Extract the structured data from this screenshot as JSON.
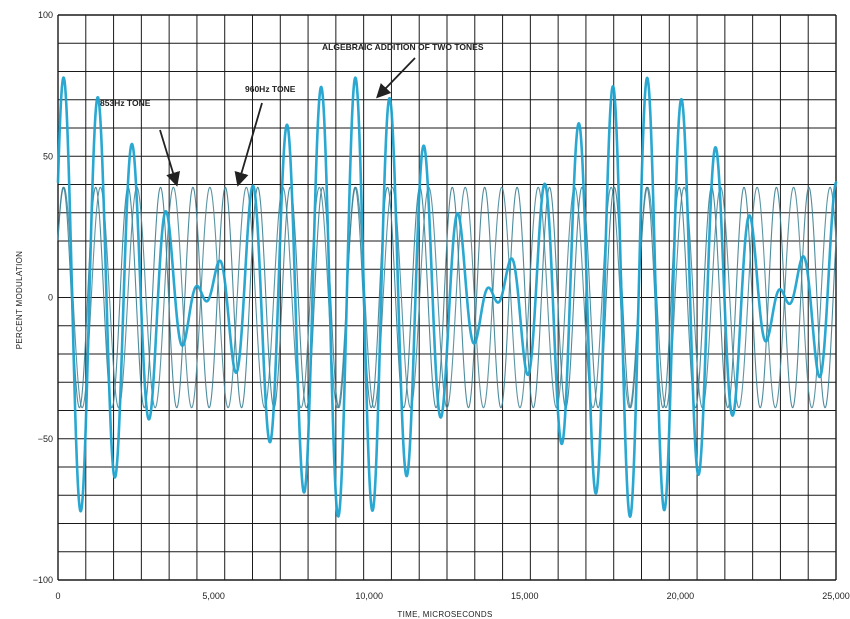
{
  "chart_data": {
    "type": "line",
    "title": "",
    "xlabel": "TIME, MICROSECONDS",
    "ylabel": "PERCENT MODULATION",
    "xlim": [
      0,
      25000
    ],
    "ylim": [
      -100,
      100
    ],
    "x_ticks": [
      {
        "value": 0,
        "label": "0"
      },
      {
        "value": 5000,
        "label": "5,000"
      },
      {
        "value": 10000,
        "label": "10,000"
      },
      {
        "value": 15000,
        "label": "15,000"
      },
      {
        "value": 20000,
        "label": "20,000"
      },
      {
        "value": 25000,
        "label": "25,000"
      }
    ],
    "y_ticks": [
      {
        "value": 100,
        "label": "100"
      },
      {
        "value": 50,
        "label": "50"
      },
      {
        "value": 0,
        "label": "0"
      },
      {
        "value": -50,
        "label": "−50"
      },
      {
        "value": -100,
        "label": "−100"
      }
    ],
    "grid": true,
    "series": [
      {
        "name": "853Hz TONE",
        "kind": "sine",
        "frequency_hz": 853,
        "amplitude_percent": 39,
        "color": "#4a8a9a"
      },
      {
        "name": "960Hz TONE",
        "kind": "sine",
        "frequency_hz": 960,
        "amplitude_percent": 39,
        "color": "#3a7f92"
      },
      {
        "name": "ALGEBRAIC ADDITION OF TWO TONES",
        "kind": "sum",
        "color": "#1fa3cf"
      }
    ],
    "annotations": [
      {
        "text": "853Hz TONE",
        "points_to": {
          "x": 3800,
          "y": 39
        }
      },
      {
        "text": "960Hz TONE",
        "points_to": {
          "x": 5800,
          "y": 39
        }
      },
      {
        "text": "ALGEBRAIC ADDITION OF TWO TONES",
        "points_to": {
          "x": 10300,
          "y": 70
        }
      }
    ]
  }
}
